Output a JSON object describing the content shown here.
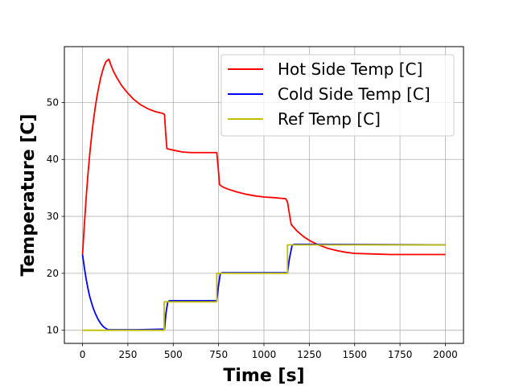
{
  "chart_data": {
    "type": "line",
    "title": "",
    "xlabel": "Time [s]",
    "ylabel": "Temperature [C]",
    "xlim": [
      -100,
      2100
    ],
    "ylim": [
      7.7,
      59.8
    ],
    "xticks": [
      0,
      250,
      500,
      750,
      1000,
      1250,
      1500,
      1750,
      2000
    ],
    "yticks": [
      10,
      20,
      30,
      40,
      50
    ],
    "grid": true,
    "legend_position": "top-right",
    "series": [
      {
        "name": "Hot Side Temp [C]",
        "color": "#ff0000",
        "points": [
          [
            0,
            23.3
          ],
          [
            10,
            28.5
          ],
          [
            20,
            33.2
          ],
          [
            30,
            37.4
          ],
          [
            40,
            41.0
          ],
          [
            50,
            44.1
          ],
          [
            60,
            46.8
          ],
          [
            70,
            49.1
          ],
          [
            80,
            51.1
          ],
          [
            90,
            52.8
          ],
          [
            100,
            54.3
          ],
          [
            110,
            55.5
          ],
          [
            120,
            56.5
          ],
          [
            130,
            57.2
          ],
          [
            145,
            57.6
          ],
          [
            155,
            56.7
          ],
          [
            170,
            55.5
          ],
          [
            190,
            54.3
          ],
          [
            215,
            53.0
          ],
          [
            245,
            51.8
          ],
          [
            280,
            50.6
          ],
          [
            320,
            49.6
          ],
          [
            360,
            48.9
          ],
          [
            400,
            48.4
          ],
          [
            440,
            48.1
          ],
          [
            452,
            47.9
          ],
          [
            458,
            44.8
          ],
          [
            465,
            41.9
          ],
          [
            490,
            41.7
          ],
          [
            550,
            41.3
          ],
          [
            600,
            41.2
          ],
          [
            700,
            41.2
          ],
          [
            740,
            41.2
          ],
          [
            748,
            38.5
          ],
          [
            755,
            35.6
          ],
          [
            770,
            35.2
          ],
          [
            800,
            34.8
          ],
          [
            850,
            34.3
          ],
          [
            900,
            33.9
          ],
          [
            950,
            33.6
          ],
          [
            1000,
            33.4
          ],
          [
            1050,
            33.3
          ],
          [
            1120,
            33.1
          ],
          [
            1130,
            32.5
          ],
          [
            1140,
            30.5
          ],
          [
            1150,
            28.6
          ],
          [
            1180,
            27.5
          ],
          [
            1220,
            26.4
          ],
          [
            1260,
            25.6
          ],
          [
            1300,
            25.0
          ],
          [
            1350,
            24.4
          ],
          [
            1400,
            24.0
          ],
          [
            1450,
            23.7
          ],
          [
            1500,
            23.5
          ],
          [
            1600,
            23.4
          ],
          [
            1700,
            23.3
          ],
          [
            2000,
            23.3
          ]
        ]
      },
      {
        "name": "Cold Side Temp [C]",
        "color": "#0000ff",
        "points": [
          [
            0,
            23.3
          ],
          [
            10,
            21.0
          ],
          [
            20,
            19.0
          ],
          [
            30,
            17.3
          ],
          [
            40,
            15.9
          ],
          [
            50,
            14.8
          ],
          [
            60,
            13.8
          ],
          [
            70,
            13.0
          ],
          [
            80,
            12.3
          ],
          [
            90,
            11.7
          ],
          [
            100,
            11.2
          ],
          [
            110,
            10.8
          ],
          [
            120,
            10.5
          ],
          [
            130,
            10.3
          ],
          [
            140,
            10.1
          ],
          [
            150,
            10.1
          ],
          [
            300,
            10.1
          ],
          [
            452,
            10.2
          ],
          [
            460,
            13.0
          ],
          [
            470,
            15.0
          ],
          [
            480,
            15.2
          ],
          [
            740,
            15.2
          ],
          [
            750,
            18.0
          ],
          [
            760,
            20.0
          ],
          [
            770,
            20.1
          ],
          [
            1130,
            20.1
          ],
          [
            1140,
            22.5
          ],
          [
            1155,
            24.9
          ],
          [
            1165,
            25.1
          ],
          [
            2000,
            25.0
          ]
        ]
      },
      {
        "name": "Ref Temp [C]",
        "color": "#bfbf00",
        "points": [
          [
            0,
            10
          ],
          [
            450,
            10
          ],
          [
            450,
            15
          ],
          [
            740,
            15
          ],
          [
            740,
            20
          ],
          [
            1130,
            20
          ],
          [
            1130,
            25
          ],
          [
            2000,
            25
          ]
        ]
      }
    ]
  }
}
